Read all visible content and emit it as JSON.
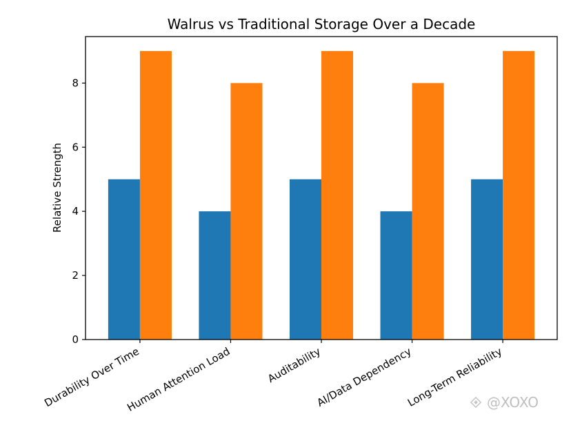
{
  "chart_data": {
    "type": "bar",
    "title": "Walrus vs Traditional Storage Over a Decade",
    "xlabel": "",
    "ylabel": "Relative Strength",
    "categories": [
      "Durability Over Time",
      "Human Attention Load",
      "Auditability",
      "AI/Data Dependency",
      "Long-Term Reliability"
    ],
    "series": [
      {
        "values": [
          5,
          4,
          5,
          4,
          5
        ],
        "color": "#1f77b4"
      },
      {
        "values": [
          9,
          8,
          9,
          8,
          9
        ],
        "color": "#ff7f0e"
      }
    ],
    "ylim": [
      0,
      9.45
    ],
    "yticks": [
      0,
      2,
      4,
      6,
      8
    ],
    "grid": false,
    "legend": "none"
  },
  "watermark": {
    "text": "@XOXO",
    "icon": "binance-logo-icon"
  }
}
